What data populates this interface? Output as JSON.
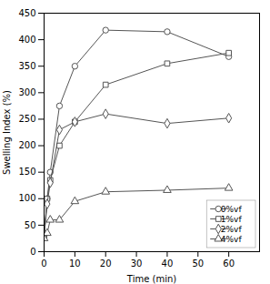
{
  "chart_data": {
    "type": "line",
    "xlabel": "Time (min)",
    "ylabel": "Swelling Index (%)",
    "x": [
      0,
      1,
      2,
      5,
      10,
      20,
      40,
      60
    ],
    "series": [
      {
        "name": "0%vf",
        "marker": "circle",
        "values": [
          30,
          100,
          150,
          275,
          350,
          418,
          415,
          368
        ]
      },
      {
        "name": "1%vf",
        "marker": "square",
        "values": [
          28,
          100,
          135,
          200,
          245,
          315,
          355,
          375
        ]
      },
      {
        "name": "2%vf",
        "marker": "diamond",
        "values": [
          28,
          90,
          130,
          230,
          245,
          260,
          242,
          252
        ]
      },
      {
        "name": "4%vf",
        "marker": "triangle",
        "values": [
          25,
          35,
          60,
          60,
          95,
          113,
          116,
          120
        ]
      }
    ],
    "color": "#555555",
    "xlim": [
      0,
      70
    ],
    "ylim": [
      0,
      450
    ],
    "xticks": [
      0,
      10,
      20,
      30,
      40,
      50,
      60
    ],
    "yticks": [
      0,
      50,
      100,
      150,
      200,
      250,
      300,
      350,
      400,
      450
    ],
    "grid": false,
    "legend": "lower right"
  }
}
